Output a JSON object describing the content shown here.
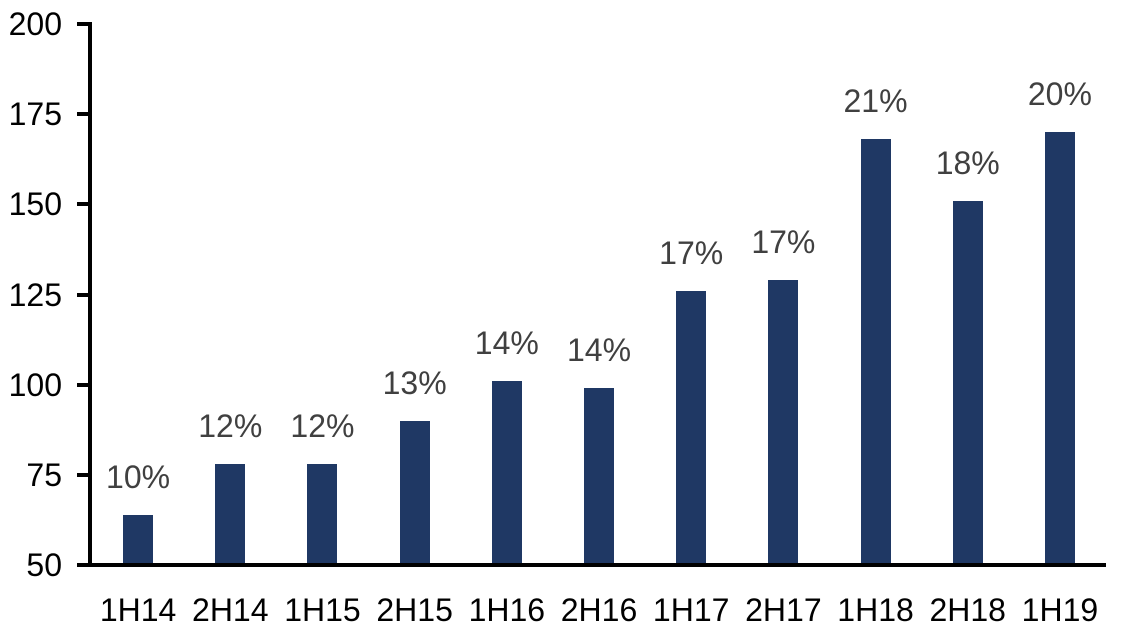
{
  "chart_data": {
    "type": "bar",
    "title": "",
    "xlabel": "",
    "ylabel": "",
    "categories": [
      "1H14",
      "2H14",
      "1H15",
      "2H15",
      "1H16",
      "2H16",
      "1H17",
      "2H17",
      "1H18",
      "2H18",
      "1H19"
    ],
    "values": [
      64,
      78,
      78,
      90,
      101,
      99,
      126,
      129,
      168,
      151,
      170
    ],
    "data_labels": [
      "10%",
      "12%",
      "12%",
      "13%",
      "14%",
      "14%",
      "17%",
      "17%",
      "21%",
      "18%",
      "20%"
    ],
    "ylim": [
      50,
      200
    ],
    "yticks": [
      50,
      75,
      100,
      125,
      150,
      175,
      200
    ],
    "grid": false,
    "legend_position": "none",
    "bar_color": "#1f3864",
    "data_label_color": "#404040",
    "axis_color": "#000000",
    "tick_label_color": "#000000"
  }
}
